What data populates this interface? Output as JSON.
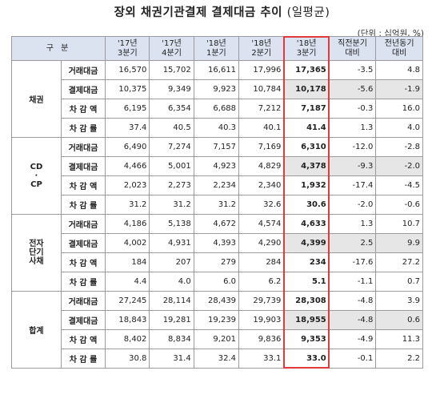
{
  "title": "장외 채권기관결제 결제대금 추이",
  "title_suffix": "(일평균)",
  "unit": "(단위 : 십억원, %)",
  "header": {
    "gubun": "구 분",
    "cols": [
      {
        "line1": "'17년",
        "line2": "3분기"
      },
      {
        "line1": "'17년",
        "line2": "4분기"
      },
      {
        "line1": "'18년",
        "line2": "1분기"
      },
      {
        "line1": "'18년",
        "line2": "2분기"
      },
      {
        "line1": "'18년",
        "line2": "3분기"
      },
      {
        "line1": "직전분기",
        "line2": "대비"
      },
      {
        "line1": "전년동기",
        "line2": "대비"
      }
    ]
  },
  "groups": [
    {
      "name": "채권",
      "rows": [
        {
          "metric": "거래대금",
          "values": [
            "16,570",
            "15,702",
            "16,611",
            "17,996",
            "17,365",
            "-3.5",
            "4.8"
          ],
          "gray": false
        },
        {
          "metric": "결제대금",
          "values": [
            "10,375",
            "9,349",
            "9,923",
            "10,784",
            "10,178",
            "-5.6",
            "-1.9"
          ],
          "gray": true
        },
        {
          "metric": "차 감 액",
          "values": [
            "6,195",
            "6,354",
            "6,688",
            "7,212",
            "7,187",
            "-0.3",
            "16.0"
          ],
          "gray": false
        },
        {
          "metric": "차 감 률",
          "values": [
            "37.4",
            "40.5",
            "40.3",
            "40.1",
            "41.4",
            "1.3",
            "4.0"
          ],
          "gray": false
        }
      ]
    },
    {
      "name": "CD · CP",
      "name_lines": [
        "CD",
        "·",
        "CP"
      ],
      "rows": [
        {
          "metric": "거래대금",
          "values": [
            "6,490",
            "7,274",
            "7,157",
            "7,169",
            "6,310",
            "-12.0",
            "-2.8"
          ],
          "gray": false
        },
        {
          "metric": "결제대금",
          "values": [
            "4,466",
            "5,001",
            "4,923",
            "4,829",
            "4,378",
            "-9.3",
            "-2.0"
          ],
          "gray": true
        },
        {
          "metric": "차 감 액",
          "values": [
            "2,023",
            "2,273",
            "2,234",
            "2,340",
            "1,932",
            "-17.4",
            "-4.5"
          ],
          "gray": false
        },
        {
          "metric": "차 감 률",
          "values": [
            "31.2",
            "31.2",
            "31.2",
            "32.6",
            "30.6",
            "-2.0",
            "-0.6"
          ],
          "gray": false
        }
      ]
    },
    {
      "name": "전자단기사채",
      "name_lines": [
        "전자",
        "단기",
        "사채"
      ],
      "rows": [
        {
          "metric": "거래대금",
          "values": [
            "4,186",
            "5,138",
            "4,672",
            "4,574",
            "4,633",
            "1.3",
            "10.7"
          ],
          "gray": false
        },
        {
          "metric": "결제대금",
          "values": [
            "4,002",
            "4,931",
            "4,393",
            "4,290",
            "4,399",
            "2.5",
            "9.9"
          ],
          "gray": true
        },
        {
          "metric": "차 감 액",
          "values": [
            "184",
            "207",
            "279",
            "284",
            "234",
            "-17.6",
            "27.2"
          ],
          "gray": false
        },
        {
          "metric": "차 감 률",
          "values": [
            "4.4",
            "4.0",
            "6.0",
            "6.2",
            "5.1",
            "-1.1",
            "0.7"
          ],
          "gray": false
        }
      ]
    },
    {
      "name": "합계",
      "rows": [
        {
          "metric": "거래대금",
          "values": [
            "27,245",
            "28,114",
            "28,439",
            "29,739",
            "28,308",
            "-4.8",
            "3.9"
          ],
          "gray": false
        },
        {
          "metric": "결제대금",
          "values": [
            "18,843",
            "19,281",
            "19,239",
            "19,903",
            "18,955",
            "-4.8",
            "0.6"
          ],
          "gray": true
        },
        {
          "metric": "차 감 액",
          "values": [
            "8,402",
            "8,834",
            "9,201",
            "9,836",
            "9,353",
            "-4.9",
            "11.3"
          ],
          "gray": false
        },
        {
          "metric": "차 감 률",
          "values": [
            "30.8",
            "31.4",
            "32.4",
            "33.1",
            "33.0",
            "-0.1",
            "2.2"
          ],
          "gray": false
        }
      ]
    }
  ],
  "colors": {
    "header_bg": "#dbe3f1",
    "gray_cell": "#e6e6e6",
    "highlight_border": "#e03a3a"
  }
}
